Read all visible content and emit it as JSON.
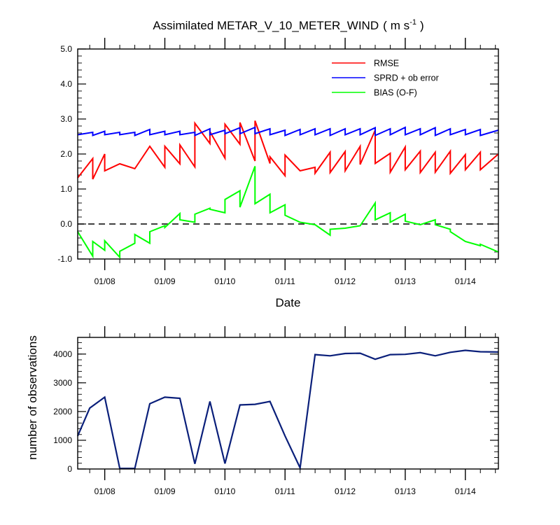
{
  "chart_data": [
    {
      "type": "line",
      "title": "Assimilated METAR_V_10_METER_WIND",
      "units_base": "m s",
      "units_exp": "-1",
      "title_open": "(",
      "title_close": ")",
      "xlabel": "Date",
      "ylabel": "",
      "ylim": [
        -1.0,
        5.0
      ],
      "xlim": [
        7.55,
        14.55
      ],
      "yticks": [
        -1.0,
        0.0,
        1.0,
        2.0,
        3.0,
        4.0,
        5.0
      ],
      "ytick_labels": [
        "-1.0",
        "0.0",
        "1.0",
        "2.0",
        "3.0",
        "4.0",
        "5.0"
      ],
      "xticks": [
        8,
        9,
        10,
        11,
        12,
        13,
        14
      ],
      "xtick_labels": [
        "01/08",
        "01/09",
        "01/10",
        "01/11",
        "01/12",
        "01/13",
        "01/14"
      ],
      "zero_line": 0,
      "legend_position": "top-right",
      "legend_entries": [
        "RMSE",
        "SPRD + ob error",
        "BIAS (O-F)"
      ],
      "series": [
        {
          "name": "RMSE",
          "color": "#ff0000",
          "x": [
            7.55,
            7.8,
            7.8,
            8.0,
            8.0,
            8.25,
            8.5,
            8.75,
            9.0,
            9.0,
            9.25,
            9.25,
            9.5,
            9.5,
            9.75,
            9.75,
            10.0,
            10.0,
            10.25,
            10.25,
            10.5,
            10.5,
            10.75,
            10.75,
            11.0,
            11.0,
            11.25,
            11.5,
            11.5,
            11.75,
            11.75,
            12.0,
            12.0,
            12.25,
            12.25,
            12.5,
            12.5,
            12.75,
            12.75,
            13.0,
            13.0,
            13.25,
            13.25,
            13.5,
            13.5,
            13.75,
            13.75,
            14.0,
            14.0,
            14.25,
            14.25,
            14.55
          ],
          "y": [
            1.32,
            1.87,
            1.28,
            2.0,
            1.52,
            1.72,
            1.58,
            2.22,
            1.62,
            2.22,
            1.72,
            2.26,
            1.63,
            2.88,
            2.3,
            2.64,
            1.88,
            2.85,
            2.28,
            2.9,
            1.8,
            2.95,
            1.73,
            1.92,
            1.38,
            1.97,
            1.52,
            1.62,
            1.45,
            2.05,
            1.47,
            2.07,
            1.52,
            2.22,
            1.7,
            2.68,
            1.73,
            2.02,
            1.48,
            2.2,
            1.55,
            2.08,
            1.47,
            2.05,
            1.48,
            2.08,
            1.45,
            1.98,
            1.55,
            2.05,
            1.55,
            2.0
          ]
        },
        {
          "name": "SPRD + ob error",
          "color": "#0000ff",
          "x": [
            7.55,
            7.8,
            7.8,
            8.0,
            8.0,
            8.25,
            8.25,
            8.5,
            8.5,
            8.75,
            8.75,
            9.0,
            9.0,
            9.25,
            9.25,
            9.5,
            9.5,
            9.75,
            9.75,
            10.0,
            10.0,
            10.25,
            10.25,
            10.5,
            10.5,
            10.75,
            10.75,
            11.0,
            11.0,
            11.25,
            11.25,
            11.5,
            11.5,
            11.75,
            11.75,
            12.0,
            12.0,
            12.25,
            12.25,
            12.5,
            12.5,
            12.75,
            12.75,
            13.0,
            13.0,
            13.25,
            13.25,
            13.5,
            13.5,
            13.75,
            13.75,
            14.0,
            14.0,
            14.25,
            14.25,
            14.55
          ],
          "y": [
            2.55,
            2.62,
            2.53,
            2.65,
            2.55,
            2.62,
            2.55,
            2.62,
            2.53,
            2.7,
            2.55,
            2.65,
            2.55,
            2.65,
            2.55,
            2.62,
            2.53,
            2.72,
            2.55,
            2.68,
            2.58,
            2.75,
            2.58,
            2.76,
            2.58,
            2.72,
            2.55,
            2.68,
            2.53,
            2.7,
            2.55,
            2.72,
            2.55,
            2.72,
            2.53,
            2.72,
            2.55,
            2.72,
            2.55,
            2.75,
            2.53,
            2.72,
            2.55,
            2.76,
            2.55,
            2.72,
            2.55,
            2.75,
            2.53,
            2.72,
            2.55,
            2.7,
            2.55,
            2.7,
            2.53,
            2.68
          ]
        },
        {
          "name": "BIAS (O-F)",
          "color": "#00ff00",
          "x": [
            7.55,
            7.8,
            7.8,
            8.0,
            8.0,
            8.25,
            8.25,
            8.5,
            8.5,
            8.75,
            8.75,
            9.0,
            9.0,
            9.25,
            9.25,
            9.5,
            9.5,
            9.75,
            9.75,
            10.0,
            10.0,
            10.25,
            10.25,
            10.5,
            10.5,
            10.75,
            10.75,
            11.0,
            11.0,
            11.25,
            11.25,
            11.5,
            11.5,
            11.75,
            11.75,
            12.0,
            12.0,
            12.25,
            12.25,
            12.5,
            12.5,
            12.75,
            12.75,
            13.0,
            13.0,
            13.25,
            13.25,
            13.5,
            13.5,
            13.75,
            13.75,
            14.0,
            14.0,
            14.25,
            14.25,
            14.55
          ],
          "y": [
            -0.22,
            -0.92,
            -0.5,
            -0.75,
            -0.48,
            -0.95,
            -0.78,
            -0.55,
            -0.3,
            -0.55,
            -0.22,
            -0.05,
            -0.1,
            0.3,
            0.12,
            0.05,
            0.28,
            0.45,
            0.42,
            0.32,
            0.7,
            0.95,
            0.48,
            1.65,
            0.58,
            0.85,
            0.32,
            0.55,
            0.25,
            0.05,
            0.05,
            -0.02,
            -0.02,
            -0.32,
            -0.15,
            -0.12,
            -0.12,
            -0.05,
            -0.05,
            0.6,
            0.12,
            0.32,
            0.05,
            0.28,
            0.08,
            -0.02,
            -0.02,
            0.12,
            -0.02,
            -0.15,
            -0.22,
            -0.5,
            -0.5,
            -0.62,
            -0.58,
            -0.8
          ]
        }
      ]
    },
    {
      "type": "line",
      "title": "",
      "xlabel": "",
      "ylabel": "number of observations",
      "ylim": [
        0,
        4580
      ],
      "xlim": [
        7.55,
        14.55
      ],
      "yticks": [
        0,
        1000,
        2000,
        3000,
        4000
      ],
      "ytick_labels": [
        "0",
        "1000",
        "2000",
        "3000",
        "4000"
      ],
      "xticks": [
        8,
        9,
        10,
        11,
        12,
        13,
        14
      ],
      "xtick_labels": [
        "01/08",
        "01/09",
        "01/10",
        "01/11",
        "01/12",
        "01/13",
        "01/14"
      ],
      "series": [
        {
          "name": "number of observations",
          "color": "#0a1f7a",
          "x": [
            7.55,
            7.75,
            8.0,
            8.25,
            8.5,
            8.75,
            9.0,
            9.25,
            9.5,
            9.75,
            10.0,
            10.25,
            10.5,
            10.75,
            11.0,
            11.25,
            11.5,
            11.75,
            12.0,
            12.25,
            12.5,
            12.75,
            13.0,
            13.25,
            13.5,
            13.75,
            14.0,
            14.25,
            14.55
          ],
          "y": [
            1150,
            2120,
            2500,
            20,
            20,
            2270,
            2500,
            2460,
            180,
            2350,
            190,
            2230,
            2250,
            2350,
            1150,
            40,
            3980,
            3940,
            4020,
            4030,
            3820,
            3980,
            3990,
            4050,
            3940,
            4060,
            4130,
            4080,
            4070
          ]
        }
      ]
    }
  ]
}
